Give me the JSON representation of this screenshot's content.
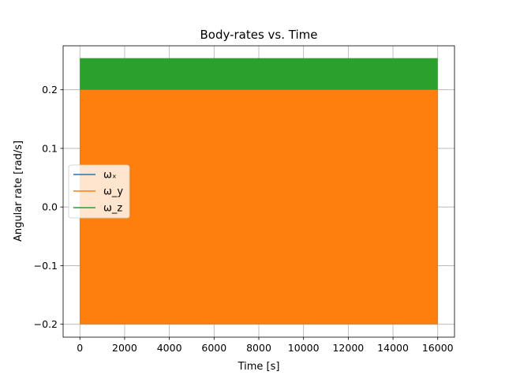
{
  "chart_data": {
    "type": "line",
    "title": "Body-rates vs. Time",
    "xlabel": "Time [s]",
    "ylabel": "Angular rate [rad/s]",
    "xlim": [
      -750,
      16750
    ],
    "ylim": [
      -0.222,
      0.275
    ],
    "xticks": [
      0,
      2000,
      4000,
      6000,
      8000,
      10000,
      12000,
      14000,
      16000
    ],
    "xtick_labels": [
      "0",
      "2000",
      "4000",
      "6000",
      "8000",
      "10000",
      "12000",
      "14000",
      "16000"
    ],
    "yticks": [
      -0.2,
      -0.1,
      0.0,
      0.1,
      0.2
    ],
    "ytick_labels": [
      "−0.2",
      "−0.1",
      "0.0",
      "0.1",
      "0.2"
    ],
    "grid": true,
    "legend_position": "center-left",
    "series": [
      {
        "name": "ωₓ",
        "color": "#1f77b4",
        "x_range": [
          0,
          16000
        ],
        "description": "dense oscillation",
        "min": -0.2,
        "max": 0.2
      },
      {
        "name": "ω_y",
        "color": "#ff7f0e",
        "x_range": [
          0,
          16000
        ],
        "description": "dense oscillation",
        "min": -0.2,
        "max": 0.2
      },
      {
        "name": "ω_z",
        "color": "#2ca02c",
        "x_range": [
          0,
          16000
        ],
        "description": "dense oscillation",
        "min": 0.2,
        "max": 0.253
      }
    ]
  }
}
